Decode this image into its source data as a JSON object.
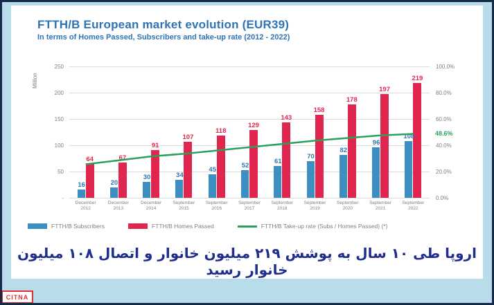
{
  "chart_data": {
    "type": "bar",
    "title": "FTTH/B European market evolution (EUR39)",
    "subtitle": "In terms of Homes Passed, Subscribers and take-up rate (2012 - 2022)",
    "categories": [
      "December 2012",
      "December 2013",
      "December 2014",
      "September 2015",
      "September 2016",
      "September 2017",
      "September 2018",
      "September 2019",
      "September 2020",
      "September 2021",
      "September 2022"
    ],
    "series": [
      {
        "name": "FTTH/B Subscribers",
        "type": "bar",
        "color": "#3e8fc1",
        "label_color": "#2e74b5",
        "values": [
          16,
          20,
          30,
          34,
          45,
          52,
          61,
          70,
          82,
          96,
          108
        ]
      },
      {
        "name": "FTTH/B Homes Passed",
        "type": "bar",
        "color": "#e0264e",
        "label_color": "#e0264e",
        "values": [
          64,
          67,
          91,
          107,
          118,
          129,
          143,
          158,
          178,
          197,
          219
        ]
      },
      {
        "name": "FTTH/B Take-up rate (Subs / Homes Passed) (*)",
        "type": "line",
        "color": "#2ba05c",
        "values_pct_estimated": [
          25.5,
          28.5,
          31.5,
          33.5,
          36.0,
          38.5,
          41.0,
          43.5,
          45.5,
          47.5,
          48.6
        ],
        "end_label": "48.6%"
      }
    ],
    "left_axis": {
      "title": "Million",
      "max": 250,
      "ticks": [
        250,
        200,
        150,
        100,
        50,
        0
      ],
      "tick_labels": [
        "250",
        "200",
        "150",
        "100",
        "50",
        "-"
      ]
    },
    "right_axis": {
      "max": 100,
      "ticks": [
        100,
        80,
        60,
        40,
        20,
        0
      ],
      "tick_labels": [
        "100.0%",
        "80.0%",
        "60.0%",
        "40.0%",
        "20.0%",
        "0.0%"
      ]
    },
    "grid": true,
    "legend_position": "bottom",
    "bar_value_labels": true
  },
  "caption": {
    "text_fa": "اروپا طی ۱۰ سال به پوشش ۲۱۹ میلیون خانوار و اتصال ۱۰۸ میلیون خانوار رسید"
  },
  "logo": {
    "text": "CITNA"
  },
  "colors": {
    "page_background": "#b9dcea",
    "frame_border": "#16294b",
    "panel_background": "#ffffff",
    "title_blue": "#2e74b5",
    "subscribers_blue": "#3e8fc1",
    "homes_passed_red": "#e0264e",
    "take_up_green": "#2ba05c",
    "caption_navy": "#1e2d8f",
    "logo_red": "#e03131",
    "axis_gray": "#7f7f7f"
  }
}
